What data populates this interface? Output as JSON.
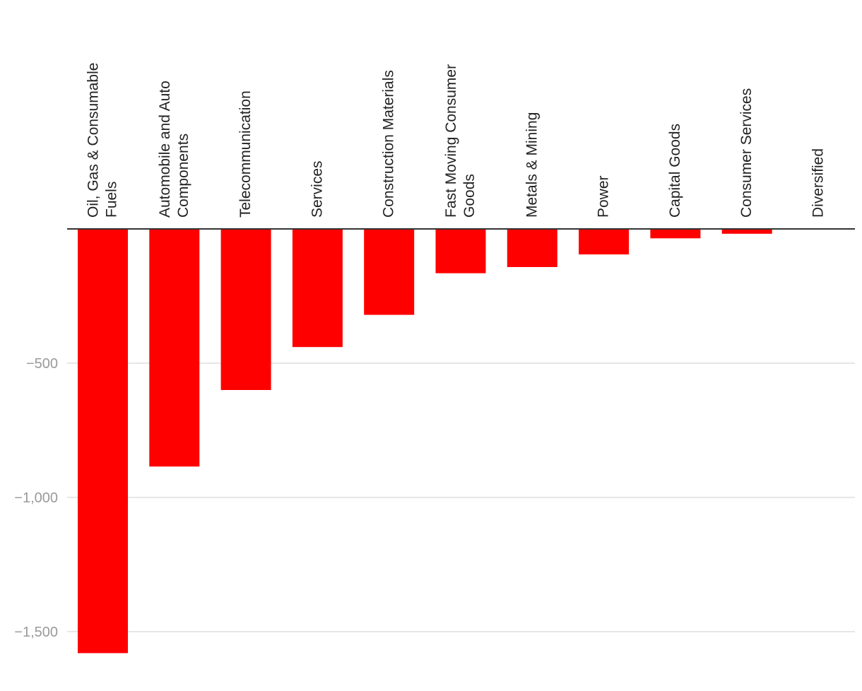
{
  "chart_data": {
    "type": "bar",
    "orientation": "vertical",
    "title": "",
    "xlabel": "",
    "ylabel": "",
    "categories": [
      [
        "Oil, Gas & Consumable",
        "Fuels"
      ],
      [
        "Automobile and Auto",
        "Components"
      ],
      [
        "Telecommunication"
      ],
      [
        "Services"
      ],
      [
        "Construction Materials"
      ],
      [
        "Fast Moving Consumer",
        "Goods"
      ],
      [
        "Metals & Mining"
      ],
      [
        "Power"
      ],
      [
        "Capital Goods"
      ],
      [
        "Consumer Services"
      ],
      [
        "Diversified"
      ]
    ],
    "values": [
      -1580,
      -885,
      -600,
      -440,
      -320,
      -165,
      -142,
      -95,
      -35,
      -18,
      0
    ],
    "ylim": [
      -1650,
      0
    ],
    "yticks": [
      {
        "value": -500,
        "label": "−500"
      },
      {
        "value": -1000,
        "label": "−1,000"
      },
      {
        "value": -1500,
        "label": "−1,500"
      }
    ],
    "grid": true,
    "legend": "none",
    "bar_color": "#ff0000"
  }
}
